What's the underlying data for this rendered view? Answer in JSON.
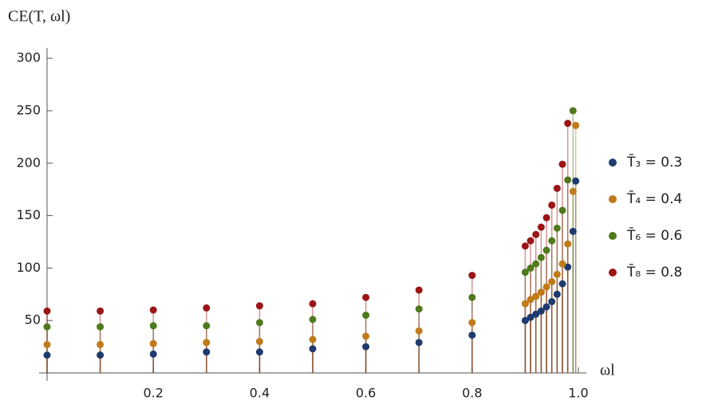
{
  "chart_data": {
    "type": "scatter",
    "y_label": "CE(T, ωl)",
    "x_label": "ωl",
    "x": [
      0,
      0.1,
      0.2,
      0.3,
      0.4,
      0.5,
      0.6,
      0.7,
      0.8,
      0.9,
      0.91,
      0.92,
      0.93,
      0.94,
      0.95,
      0.96,
      0.97,
      0.98,
      0.99,
      0.995
    ],
    "series": [
      {
        "name": "T̄₃ = 0.3",
        "color": "#1f3a6e",
        "values": [
          17,
          17,
          18,
          20,
          20,
          23,
          25,
          29,
          36,
          50,
          53,
          56,
          59,
          63,
          68,
          75,
          85,
          101,
          135,
          183
        ]
      },
      {
        "name": "T̄₄ = 0.4",
        "color": "#c07a1a",
        "values": [
          27,
          27,
          28,
          29,
          30,
          32,
          35,
          40,
          48,
          66,
          70,
          73,
          77,
          82,
          87,
          94,
          104,
          123,
          173,
          236
        ]
      },
      {
        "name": "T̄₆ = 0.6",
        "color": "#4f7a1e",
        "values": [
          44,
          44,
          45,
          45,
          48,
          51,
          55,
          61,
          72,
          96,
          100,
          104,
          110,
          117,
          126,
          138,
          155,
          184,
          250,
          null
        ]
      },
      {
        "name": "T̄₈ = 0.8",
        "color": "#9b1515",
        "values": [
          59,
          59,
          60,
          62,
          64,
          66,
          72,
          79,
          93,
          121,
          126,
          132,
          139,
          148,
          160,
          176,
          199,
          238,
          null,
          null
        ]
      }
    ],
    "xlim": [
      0,
      1
    ],
    "ylim": [
      0,
      310
    ],
    "xticks": [
      0.2,
      0.4,
      0.6,
      0.8,
      {
        "value": 1,
        "label": "1.0"
      }
    ],
    "yticks": [
      50,
      100,
      150,
      200,
      250,
      300
    ]
  }
}
